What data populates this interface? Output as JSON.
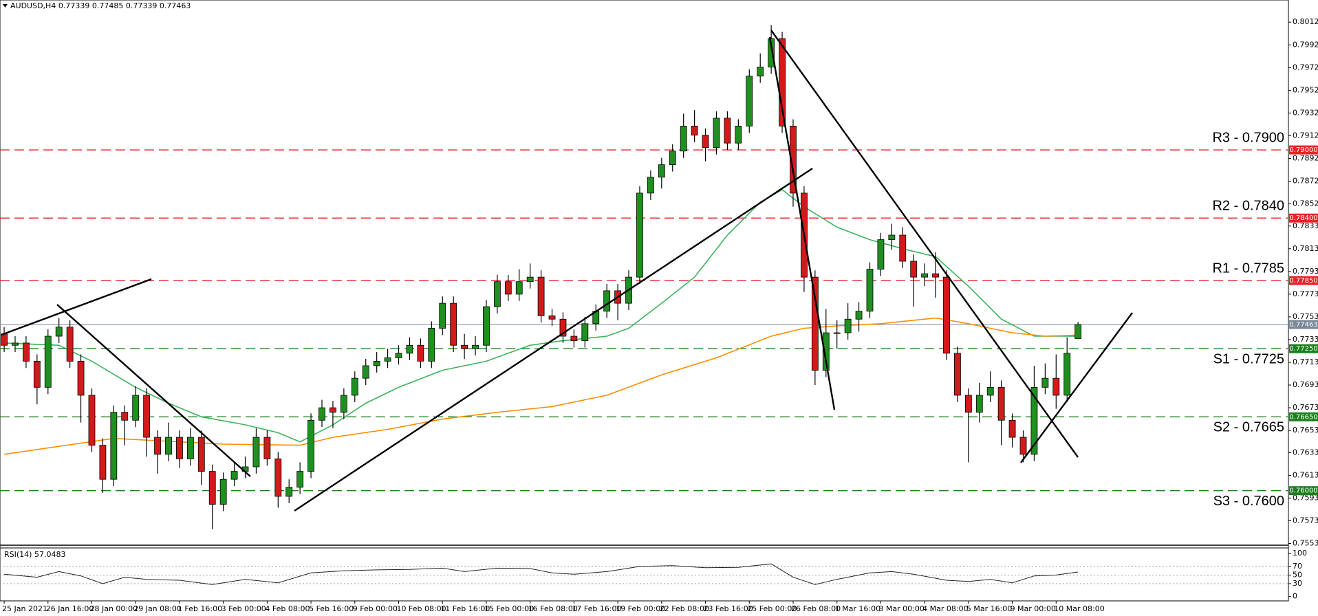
{
  "chart_data": {
    "type": "candlestick",
    "symbol": "AUDUSD,H4",
    "up_color": "#1f8f1f",
    "down_color": "#d11a1a",
    "wick_color": "#000000",
    "ohlc": [
      [
        0.7738,
        0.7744,
        0.7722,
        0.7728
      ],
      [
        0.7728,
        0.7736,
        0.7722,
        0.773
      ],
      [
        0.773,
        0.7736,
        0.7708,
        0.7714
      ],
      [
        0.7714,
        0.772,
        0.7676,
        0.7691
      ],
      [
        0.7691,
        0.7742,
        0.7685,
        0.7736
      ],
      [
        0.7736,
        0.7752,
        0.773,
        0.7744
      ],
      [
        0.7744,
        0.775,
        0.7708,
        0.7714
      ],
      [
        0.7714,
        0.772,
        0.766,
        0.7684
      ],
      [
        0.7684,
        0.769,
        0.7634,
        0.764
      ],
      [
        0.764,
        0.7646,
        0.7598,
        0.761
      ],
      [
        0.761,
        0.7675,
        0.7604,
        0.7669
      ],
      [
        0.7669,
        0.7675,
        0.764,
        0.7662
      ],
      [
        0.7662,
        0.7692,
        0.7656,
        0.7684
      ],
      [
        0.7684,
        0.769,
        0.763,
        0.7647
      ],
      [
        0.7647,
        0.7653,
        0.7615,
        0.7632
      ],
      [
        0.7632,
        0.766,
        0.7626,
        0.7647
      ],
      [
        0.7647,
        0.7653,
        0.762,
        0.7628
      ],
      [
        0.7628,
        0.7655,
        0.7622,
        0.7647
      ],
      [
        0.7647,
        0.7653,
        0.7605,
        0.7617
      ],
      [
        0.7617,
        0.7623,
        0.7566,
        0.7588
      ],
      [
        0.7588,
        0.7616,
        0.7582,
        0.761
      ],
      [
        0.761,
        0.7624,
        0.7604,
        0.7617
      ],
      [
        0.7617,
        0.763,
        0.7611,
        0.7621
      ],
      [
        0.7621,
        0.7655,
        0.7615,
        0.7647
      ],
      [
        0.7647,
        0.7653,
        0.7622,
        0.7628
      ],
      [
        0.7628,
        0.7634,
        0.7585,
        0.7595
      ],
      [
        0.7595,
        0.761,
        0.7589,
        0.7603
      ],
      [
        0.7603,
        0.7625,
        0.7597,
        0.7617
      ],
      [
        0.7617,
        0.7668,
        0.7611,
        0.7662
      ],
      [
        0.7662,
        0.768,
        0.7656,
        0.7673
      ],
      [
        0.7673,
        0.7679,
        0.7655,
        0.7669
      ],
      [
        0.7669,
        0.769,
        0.7663,
        0.7684
      ],
      [
        0.7684,
        0.7705,
        0.7678,
        0.7699
      ],
      [
        0.7699,
        0.7716,
        0.7693,
        0.771
      ],
      [
        0.771,
        0.7722,
        0.7704,
        0.7714
      ],
      [
        0.7714,
        0.7725,
        0.7708,
        0.7717
      ],
      [
        0.7717,
        0.7728,
        0.7711,
        0.7721
      ],
      [
        0.7721,
        0.7735,
        0.7715,
        0.7728
      ],
      [
        0.7728,
        0.7734,
        0.7708,
        0.7714
      ],
      [
        0.7714,
        0.7749,
        0.7708,
        0.7743
      ],
      [
        0.7743,
        0.7771,
        0.7737,
        0.7765
      ],
      [
        0.7765,
        0.7771,
        0.7722,
        0.7728
      ],
      [
        0.7728,
        0.7738,
        0.7716,
        0.7725
      ],
      [
        0.7725,
        0.7736,
        0.7719,
        0.7728
      ],
      [
        0.7728,
        0.7768,
        0.7722,
        0.7762
      ],
      [
        0.7762,
        0.779,
        0.7756,
        0.7784
      ],
      [
        0.7784,
        0.779,
        0.7767,
        0.7773
      ],
      [
        0.7773,
        0.7795,
        0.7767,
        0.7784
      ],
      [
        0.7784,
        0.78,
        0.7778,
        0.7788
      ],
      [
        0.7788,
        0.7794,
        0.7748,
        0.7754
      ],
      [
        0.7754,
        0.776,
        0.7745,
        0.7751
      ],
      [
        0.7751,
        0.7757,
        0.773,
        0.7736
      ],
      [
        0.7736,
        0.7742,
        0.7726,
        0.7732
      ],
      [
        0.7732,
        0.7753,
        0.7726,
        0.7747
      ],
      [
        0.7747,
        0.7764,
        0.7741,
        0.7758
      ],
      [
        0.7758,
        0.7782,
        0.7752,
        0.7776
      ],
      [
        0.7776,
        0.7782,
        0.775,
        0.7765
      ],
      [
        0.7765,
        0.7794,
        0.7759,
        0.7788
      ],
      [
        0.7788,
        0.7868,
        0.7782,
        0.7862
      ],
      [
        0.7862,
        0.7882,
        0.7856,
        0.7876
      ],
      [
        0.7876,
        0.7893,
        0.7866,
        0.7887
      ],
      [
        0.7887,
        0.7905,
        0.7881,
        0.7899
      ],
      [
        0.7899,
        0.7932,
        0.7893,
        0.7921
      ],
      [
        0.7921,
        0.7935,
        0.7907,
        0.7913
      ],
      [
        0.7913,
        0.7919,
        0.789,
        0.7902
      ],
      [
        0.7902,
        0.7934,
        0.7896,
        0.7928
      ],
      [
        0.7928,
        0.7934,
        0.79,
        0.7906
      ],
      [
        0.7906,
        0.7927,
        0.79,
        0.7921
      ],
      [
        0.7921,
        0.7971,
        0.7915,
        0.7965
      ],
      [
        0.7965,
        0.7985,
        0.7959,
        0.7973
      ],
      [
        0.7973,
        0.801,
        0.7967,
        0.7998
      ],
      [
        0.7998,
        0.8004,
        0.7915,
        0.7921
      ],
      [
        0.7921,
        0.7927,
        0.785,
        0.7862
      ],
      [
        0.7862,
        0.7868,
        0.7775,
        0.7788
      ],
      [
        0.7788,
        0.7794,
        0.7693,
        0.7706
      ],
      [
        0.7706,
        0.776,
        0.77,
        0.7739
      ],
      [
        0.7739,
        0.775,
        0.7725,
        0.7739
      ],
      [
        0.7739,
        0.7765,
        0.7733,
        0.7751
      ],
      [
        0.7751,
        0.7766,
        0.774,
        0.7758
      ],
      [
        0.7758,
        0.7801,
        0.7752,
        0.7795
      ],
      [
        0.7795,
        0.7827,
        0.7789,
        0.7821
      ],
      [
        0.7821,
        0.7835,
        0.7812,
        0.7825
      ],
      [
        0.7825,
        0.7832,
        0.7796,
        0.7802
      ],
      [
        0.7802,
        0.7808,
        0.7762,
        0.7788
      ],
      [
        0.7788,
        0.78,
        0.778,
        0.7791
      ],
      [
        0.7791,
        0.781,
        0.777,
        0.7788
      ],
      [
        0.7788,
        0.7794,
        0.7715,
        0.7721
      ],
      [
        0.7721,
        0.7727,
        0.7678,
        0.7684
      ],
      [
        0.7684,
        0.769,
        0.7625,
        0.7669
      ],
      [
        0.7669,
        0.7695,
        0.766,
        0.7684
      ],
      [
        0.7684,
        0.7705,
        0.7678,
        0.7691
      ],
      [
        0.7691,
        0.7697,
        0.764,
        0.7662
      ],
      [
        0.7662,
        0.7668,
        0.7638,
        0.7647
      ],
      [
        0.7647,
        0.7653,
        0.7625,
        0.7632
      ],
      [
        0.7632,
        0.771,
        0.7626,
        0.7691
      ],
      [
        0.7691,
        0.7712,
        0.7685,
        0.7699
      ],
      [
        0.7699,
        0.772,
        0.7672,
        0.7684
      ],
      [
        0.7684,
        0.7735,
        0.7678,
        0.7721
      ],
      [
        0.77339,
        0.77485,
        0.77339,
        0.77463
      ]
    ],
    "xlim": [
      -0.38,
      117.2
    ],
    "xticks": [
      {
        "value": 0,
        "label": "25 Jan 2021"
      },
      {
        "value": 4,
        "label": "26 Jan 16:00"
      },
      {
        "value": 8,
        "label": "28 Jan 00:00"
      },
      {
        "value": 12,
        "label": "29 Jan 08:00"
      },
      {
        "value": 16,
        "label": "1 Feb 16:00"
      },
      {
        "value": 20,
        "label": "3 Feb 00:00"
      },
      {
        "value": 24,
        "label": "4 Feb 08:00"
      },
      {
        "value": 28,
        "label": "5 Feb 16:00"
      },
      {
        "value": 32,
        "label": "9 Feb 00:00"
      },
      {
        "value": 36,
        "label": "10 Feb 08:00"
      },
      {
        "value": 40,
        "label": "11 Feb 16:00"
      },
      {
        "value": 44,
        "label": "15 Feb 00:00"
      },
      {
        "value": 48,
        "label": "16 Feb 08:00"
      },
      {
        "value": 52,
        "label": "17 Feb 16:00"
      },
      {
        "value": 56,
        "label": "19 Feb 00:00"
      },
      {
        "value": 60,
        "label": "22 Feb 08:00"
      },
      {
        "value": 64,
        "label": "23 Feb 16:00"
      },
      {
        "value": 68,
        "label": "25 Feb 00:00"
      },
      {
        "value": 72,
        "label": "26 Feb 08:00"
      },
      {
        "value": 76,
        "label": "1 Mar 16:00"
      },
      {
        "value": 80,
        "label": "3 Mar 00:00"
      },
      {
        "value": 84,
        "label": "4 Mar 08:00"
      },
      {
        "value": 88,
        "label": "5 Mar 16:00"
      },
      {
        "value": 92,
        "label": "9 Mar 00:00"
      },
      {
        "value": 96,
        "label": "10 Mar 08:00"
      }
    ],
    "ylim": [
      0.7552,
      0.8032
    ],
    "yticks": [
      0.80125,
      0.79925,
      0.79725,
      0.79525,
      0.79325,
      0.79125,
      0.78925,
      0.78725,
      0.78525,
      {
        "value": 0.7833,
        "label": "0.78330"
      },
      {
        "value": 0.7813,
        "label": "0.78130"
      },
      {
        "value": 0.7793,
        "label": "0.77930"
      },
      {
        "value": 0.7773,
        "label": "0.77730"
      },
      {
        "value": 0.7753,
        "label": "0.77530"
      },
      {
        "value": 0.7733,
        "label": "0.77330"
      },
      {
        "value": 0.7713,
        "label": "0.77130"
      },
      {
        "value": 0.7693,
        "label": "0.76930"
      },
      {
        "value": 0.7673,
        "label": "0.76730"
      },
      {
        "value": 0.7653,
        "label": "0.76530"
      },
      0.76335,
      0.76135,
      0.75935,
      0.75735,
      0.75535
    ],
    "series": [
      {
        "color": "#3cb35a",
        "x": [
          0,
          5,
          8,
          12,
          15,
          18,
          22,
          25,
          27,
          30,
          33,
          36,
          40,
          44,
          48,
          51,
          55,
          57,
          60,
          63,
          66,
          69,
          71,
          73,
          76,
          79,
          82,
          85,
          88,
          91,
          94,
          98
        ],
        "values": [
          0.773,
          0.7728,
          0.7714,
          0.7691,
          0.7677,
          0.7665,
          0.7658,
          0.7651,
          0.7643,
          0.7658,
          0.7677,
          0.7691,
          0.7706,
          0.7714,
          0.7728,
          0.7732,
          0.7736,
          0.7743,
          0.7765,
          0.7788,
          0.7825,
          0.7854,
          0.7865,
          0.785,
          0.7832,
          0.7821,
          0.7813,
          0.7806,
          0.778,
          0.7751,
          0.7736,
          0.7736
        ]
      },
      {
        "color": "#ff8c00",
        "x": [
          0,
          10,
          20,
          27,
          30,
          35,
          40,
          45,
          50,
          55,
          60,
          65,
          70,
          73,
          76,
          80,
          85,
          88,
          92,
          95,
          98
        ],
        "values": [
          0.7632,
          0.7646,
          0.7641,
          0.764,
          0.7647,
          0.7654,
          0.7663,
          0.7669,
          0.7674,
          0.7684,
          0.7702,
          0.7717,
          0.7736,
          0.7743,
          0.7745,
          0.7747,
          0.7752,
          0.7747,
          0.7739,
          0.7736,
          0.7737
        ]
      }
    ],
    "levels": [
      {
        "name": "R3 - 0.7900",
        "value": 0.79,
        "value_label": "0.79000",
        "color": "#e8242a"
      },
      {
        "name": "R2 - 0.7840",
        "value": 0.784,
        "value_label": "0.78400",
        "color": "#e8242a"
      },
      {
        "name": "R1 - 0.7785",
        "value": 0.7785,
        "value_label": "0.77850",
        "color": "#e8242a"
      },
      {
        "name": "S1 - 0.7725",
        "value": 0.7725,
        "value_label": "0.77250",
        "color": "#1b7f1b"
      },
      {
        "name": "S2 - 0.7665",
        "value": 0.7665,
        "value_label": "0.76650",
        "color": "#1b7f1b"
      },
      {
        "name": "S3 - 0.7600",
        "value": 0.76,
        "value_label": "0.76000",
        "color": "#1b7f1b"
      }
    ],
    "current_price_color": "#7a8898",
    "rsi": {
      "label": "RSI(14)",
      "color": "#222222",
      "ylim": [
        -10,
        113
      ],
      "yticks": [
        100,
        70,
        50,
        30,
        0
      ],
      "x": [
        0,
        3,
        5,
        7,
        9,
        11,
        13,
        16,
        19,
        22,
        25,
        28,
        31,
        34,
        37,
        40,
        42,
        45,
        48,
        50,
        52,
        55,
        58,
        61,
        64,
        67,
        70,
        72,
        74,
        76,
        79,
        81,
        83,
        86,
        88,
        90,
        92,
        94,
        96,
        98
      ],
      "values": [
        52,
        45,
        58,
        48,
        30,
        45,
        40,
        38,
        28,
        40,
        32,
        55,
        60,
        62,
        63,
        66,
        58,
        66,
        65,
        55,
        52,
        58,
        70,
        72,
        67,
        68,
        76,
        45,
        28,
        40,
        55,
        58,
        52,
        38,
        35,
        40,
        32,
        48,
        50,
        57.0483
      ]
    }
  }
}
